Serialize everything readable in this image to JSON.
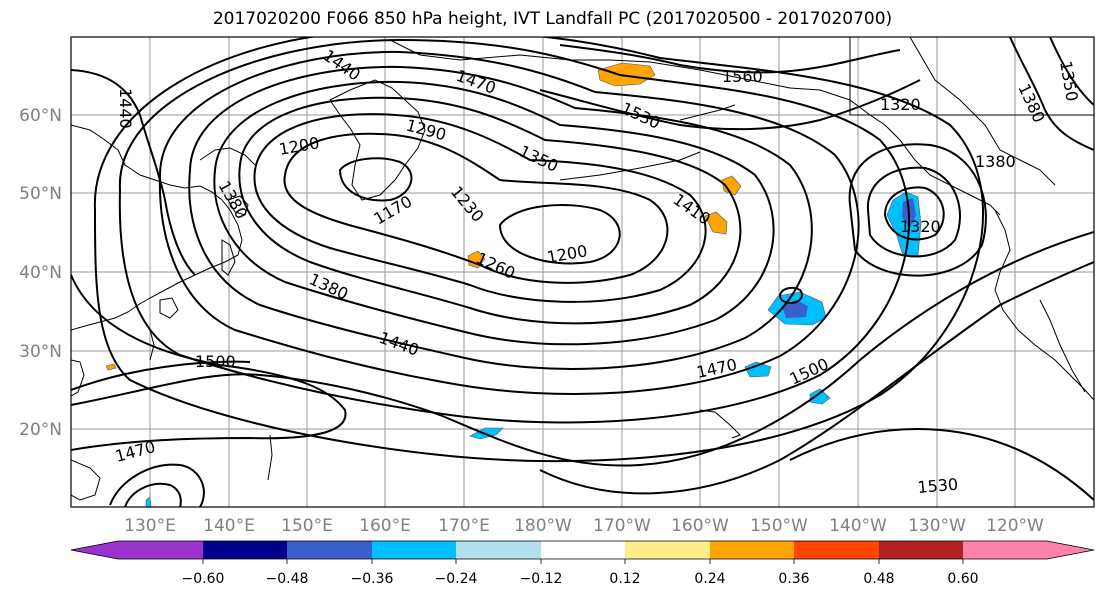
{
  "title": "2017020200 F066 850 hPa height, IVT Landfall PC (2017020500 - 2017020700)",
  "lat_labels": [
    "60°N",
    "50°N",
    "40°N",
    "30°N",
    "20°N"
  ],
  "lon_labels": [
    "130°E",
    "140°E",
    "150°E",
    "160°E",
    "170°E",
    "180°W",
    "170°W",
    "160°W",
    "150°W",
    "140°W",
    "130°W",
    "120°W"
  ],
  "contour_labels": [
    "1440",
    "1470",
    "1560",
    "1530",
    "1200",
    "1290",
    "1350",
    "1350",
    "1380",
    "1380",
    "1320",
    "1410",
    "1230",
    "1170",
    "1260",
    "1200",
    "1380",
    "1440",
    "1500",
    "1470",
    "1500",
    "1470",
    "1530",
    "1440",
    "1380",
    "1320"
  ],
  "colorbar": {
    "ticks": [
      "−0.60",
      "−0.48",
      "−0.36",
      "−0.24",
      "−0.12",
      "0.12",
      "0.24",
      "0.36",
      "0.48",
      "0.60"
    ],
    "colors": [
      "#9a32cd",
      "#00008b",
      "#3a5fcd",
      "#00bfff",
      "#b2dfee",
      "#ffffff",
      "#ffec8b",
      "#ffa500",
      "#ff4500",
      "#b22222",
      "#ff82ab"
    ]
  }
}
